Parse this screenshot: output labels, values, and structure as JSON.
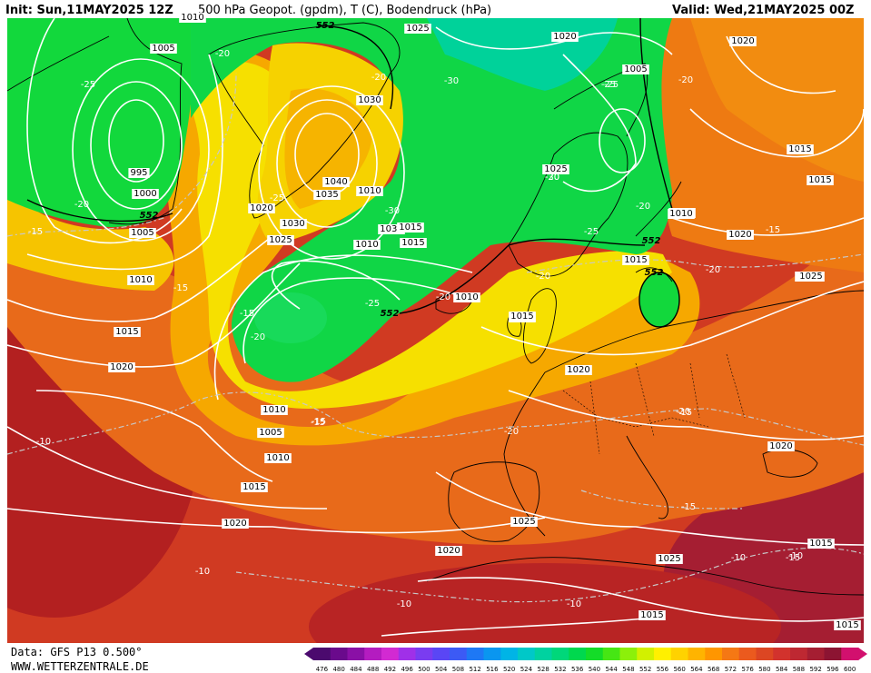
{
  "header": {
    "init": "Init: Sun,11MAY2025 12Z",
    "title": "500 hPa Geopot. (gpdm), T (C), Bodendruck (hPa)",
    "valid": "Valid: Wed,21MAY2025 00Z"
  },
  "footer": {
    "data_source": "Data: GFS P13 0.500°",
    "website": "WWW.WETTERZENTRALE.DE"
  },
  "pressure_labels": [
    "1010",
    "1005",
    "995",
    "1000",
    "1005",
    "1010",
    "1015",
    "1020",
    "1025",
    "1030",
    "1035",
    "1040",
    "1030",
    "1020",
    "1025",
    "1030",
    "1010",
    "1015",
    "1020",
    "1005",
    "1025",
    "1015",
    "1015",
    "1010",
    "1015",
    "1020",
    "1010",
    "1005",
    "1010",
    "1015",
    "1020",
    "1025",
    "1020",
    "1025",
    "1015",
    "1020",
    "1015",
    "1010",
    "1015",
    "1020",
    "1015",
    "1015",
    "1015",
    "1010",
    "1015",
    "1010",
    "1020",
    "1025",
    "1015"
  ],
  "temperature_labels": [
    "-20",
    "-25",
    "-20",
    "-30",
    "-25",
    "-20",
    "-15",
    "-20",
    "-15",
    "-30",
    "-20",
    "-25",
    "-20",
    "-30",
    "-25",
    "-20",
    "-25",
    "-15",
    "-20",
    "-15",
    "-10",
    "-15",
    "-20",
    "-15",
    "-15",
    "-10",
    "-10",
    "-10",
    "-10",
    "-15",
    "-20",
    "-15",
    "-10",
    "-20",
    "-25",
    "-20",
    "-15"
  ],
  "geopotential_labels": [
    "552",
    "552",
    "552",
    "552",
    "552"
  ],
  "colorbar": {
    "ticks": [
      "476",
      "480",
      "484",
      "488",
      "492",
      "496",
      "500",
      "504",
      "508",
      "512",
      "516",
      "520",
      "524",
      "528",
      "532",
      "536",
      "540",
      "544",
      "548",
      "552",
      "556",
      "560",
      "564",
      "568",
      "572",
      "576",
      "580",
      "584",
      "588",
      "592",
      "596",
      "600"
    ],
    "colors": [
      "#4b0a6e",
      "#6a0a8c",
      "#8a10a6",
      "#b41cc0",
      "#d22ad2",
      "#a030e8",
      "#7a3cf0",
      "#5a46f5",
      "#3c5af5",
      "#1e78f5",
      "#0a96f0",
      "#00b4e6",
      "#00c8c8",
      "#00d2a0",
      "#00d77a",
      "#00d84e",
      "#14dc28",
      "#46e614",
      "#8cf00a",
      "#d2f000",
      "#fff000",
      "#ffd200",
      "#ffb400",
      "#ff9600",
      "#f57814",
      "#eb5a1e",
      "#dc4623",
      "#d2322d",
      "#be2832",
      "#a51e32",
      "#8c1432",
      "#d2106e"
    ]
  },
  "colors": {
    "land_outline": "#000000",
    "isobar": "#ffffff",
    "isotherm": "#bbbbbb"
  }
}
